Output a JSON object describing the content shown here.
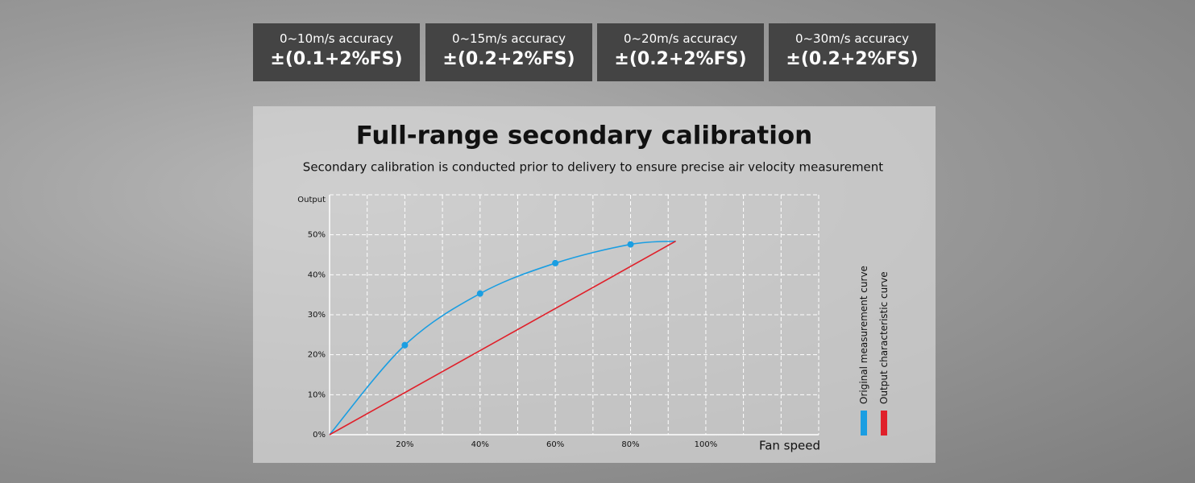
{
  "accuracy": [
    {
      "range": "0~10m/s accuracy",
      "value": "±(0.1+2%FS)"
    },
    {
      "range": "0~15m/s accuracy",
      "value": "±(0.2+2%FS)"
    },
    {
      "range": "0~20m/s accuracy",
      "value": "±(0.2+2%FS)"
    },
    {
      "range": "0~30m/s accuracy",
      "value": "±(0.2+2%FS)"
    }
  ],
  "chart_data": {
    "type": "line",
    "title": "Full-range secondary calibration",
    "subtitle": "Secondary calibration is conducted prior to delivery to ensure precise air velocity measurement",
    "x_label": "Fan speed",
    "y_label": "Output",
    "xlim": [
      0,
      130
    ],
    "ylim": [
      0,
      60
    ],
    "xticks": [
      {
        "value": 20,
        "label": "20%"
      },
      {
        "value": 40,
        "label": "40%"
      },
      {
        "value": 60,
        "label": "60%"
      },
      {
        "value": 80,
        "label": "80%"
      },
      {
        "value": 100,
        "label": "100%"
      }
    ],
    "yticks": [
      {
        "value": 0,
        "label": "0%"
      },
      {
        "value": 10,
        "label": "10%"
      },
      {
        "value": 20,
        "label": "20%"
      },
      {
        "value": 30,
        "label": "30%"
      },
      {
        "value": 40,
        "label": "40%"
      },
      {
        "value": 50,
        "label": "50%"
      }
    ],
    "grid": true,
    "series": [
      {
        "name": "Original measurement curve",
        "color": "#1a9ee2",
        "x": [
          0,
          20,
          40,
          60,
          80,
          92
        ],
        "values": [
          0,
          22.4,
          35.3,
          42.9,
          47.6,
          48.4
        ]
      },
      {
        "name": "Output characteristic curve",
        "color": "#e0202a",
        "x": [
          0,
          92
        ],
        "values": [
          0,
          48.4
        ]
      }
    ]
  }
}
